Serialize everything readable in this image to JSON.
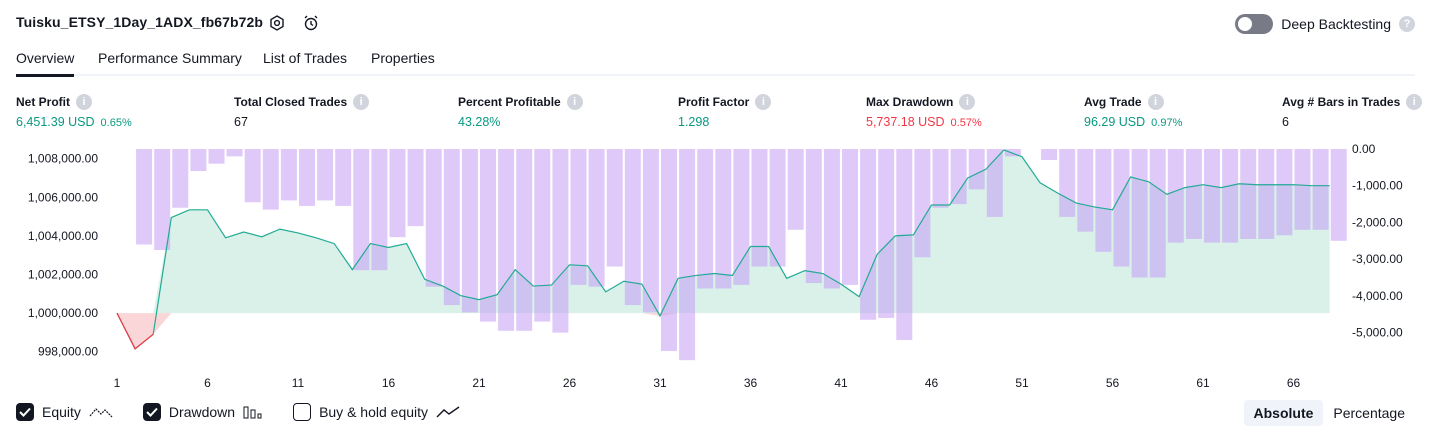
{
  "header": {
    "title": "Tuisku_ETSY_1Day_1ADX_fb67b72b",
    "deep_label": "Deep Backtesting"
  },
  "tabs": [
    "Overview",
    "Performance Summary",
    "List of Trades",
    "Properties"
  ],
  "metrics": [
    {
      "label": "Net Profit",
      "value": "6,451.39 USD",
      "pct": "0.65%",
      "color": "green"
    },
    {
      "label": "Total Closed Trades",
      "value": "67",
      "pct": "",
      "color": "dark"
    },
    {
      "label": "Percent Profitable",
      "value": "43.28%",
      "pct": "",
      "color": "green"
    },
    {
      "label": "Profit Factor",
      "value": "1.298",
      "pct": "",
      "color": "green"
    },
    {
      "label": "Max Drawdown",
      "value": "5,737.18 USD",
      "pct": "0.57%",
      "color": "red"
    },
    {
      "label": "Avg Trade",
      "value": "96.29 USD",
      "pct": "0.97%",
      "color": "green"
    },
    {
      "label": "Avg # Bars in Trades",
      "value": "6",
      "pct": "",
      "color": "dark"
    }
  ],
  "legend": {
    "equity": "Equity",
    "drawdown": "Drawdown",
    "buyhold": "Buy & hold equity"
  },
  "mode": {
    "absolute": "Absolute",
    "percentage": "Percentage"
  },
  "chart_data": {
    "type": "line",
    "x_ticks": [
      1,
      6,
      11,
      16,
      21,
      26,
      31,
      36,
      41,
      46,
      51,
      56,
      61,
      66
    ],
    "y_left_ticks": [
      "1,008,000.00",
      "1,006,000.00",
      "1,004,000.00",
      "1,002,000.00",
      "1,000,000.00",
      "998,000.00"
    ],
    "y_right_ticks": [
      "0.00",
      "-1,000.00",
      "-2,000.00",
      "-3,000.00",
      "-4,000.00",
      "-5,000.00"
    ],
    "y_left_range": [
      997000,
      1008500
    ],
    "y_right_range": [
      -5800,
      0
    ],
    "series": [
      {
        "name": "Equity",
        "x": [
          1,
          2,
          3,
          4,
          5,
          6,
          7,
          8,
          9,
          10,
          11,
          12,
          13,
          14,
          15,
          16,
          17,
          18,
          19,
          20,
          21,
          22,
          23,
          24,
          25,
          26,
          27,
          28,
          29,
          30,
          31,
          32,
          33,
          34,
          35,
          36,
          37,
          38,
          39,
          40,
          41,
          42,
          43,
          44,
          45,
          46,
          47,
          48,
          49,
          50,
          51,
          52,
          53,
          54,
          55,
          56,
          57,
          58,
          59,
          60,
          61,
          62,
          63,
          64,
          65,
          66,
          67,
          68
        ],
        "values": [
          1000000,
          998150,
          998900,
          1004950,
          1005350,
          1005350,
          1003900,
          1004200,
          1003950,
          1004350,
          1004150,
          1003900,
          1003600,
          1002250,
          1003600,
          1003400,
          1003600,
          1001750,
          1001400,
          1000900,
          1000700,
          1000950,
          1002250,
          1001400,
          1001450,
          1002500,
          1002450,
          1001100,
          1001650,
          1001500,
          999850,
          1001800,
          1001950,
          1002050,
          1001950,
          1003450,
          1003450,
          1001800,
          1002200,
          1002050,
          1001500,
          1000850,
          1003050,
          1004000,
          1004050,
          1005600,
          1005600,
          1007000,
          1007450,
          1008450,
          1008100,
          1006750,
          1006200,
          1005700,
          1005500,
          1005350,
          1007050,
          1006800,
          1006150,
          1006500,
          1006650,
          1006500,
          1006700,
          1006650,
          1006650,
          1006650,
          1006600,
          1006600
        ]
      },
      {
        "name": "Drawdown",
        "x": [
          1,
          2,
          3,
          4,
          5,
          6,
          7,
          8,
          9,
          10,
          11,
          12,
          13,
          14,
          15,
          16,
          17,
          18,
          19,
          20,
          21,
          22,
          23,
          24,
          25,
          26,
          27,
          28,
          29,
          30,
          31,
          32,
          33,
          34,
          35,
          36,
          37,
          38,
          39,
          40,
          41,
          42,
          43,
          44,
          45,
          46,
          47,
          48,
          49,
          50,
          51,
          52,
          53,
          54,
          55,
          56,
          57,
          58,
          59,
          60,
          61,
          62,
          63,
          64,
          65,
          66,
          67,
          68
        ],
        "values": [
          0,
          -2600,
          -2750,
          -1600,
          -600,
          -400,
          -200,
          -1450,
          -1650,
          -1400,
          -1550,
          -1400,
          -1550,
          -3300,
          -3300,
          -2400,
          -2100,
          -3750,
          -4250,
          -4450,
          -4700,
          -4950,
          -4950,
          -4700,
          -5000,
          -3700,
          -3750,
          -3200,
          -4250,
          -4450,
          -5500,
          -5750,
          -3800,
          -3800,
          -3700,
          -3200,
          -3200,
          -2200,
          -3650,
          -3800,
          -3700,
          -4650,
          -4600,
          -5200,
          -2950,
          -1600,
          -1500,
          -1100,
          -1850,
          -200,
          0,
          -300,
          -1850,
          -2250,
          -2800,
          -3200,
          -3500,
          -3500,
          -2550,
          -2450,
          -2550,
          -2550,
          -2450,
          -2450,
          -2350,
          -2200,
          -2200,
          -2500
        ]
      }
    ]
  }
}
